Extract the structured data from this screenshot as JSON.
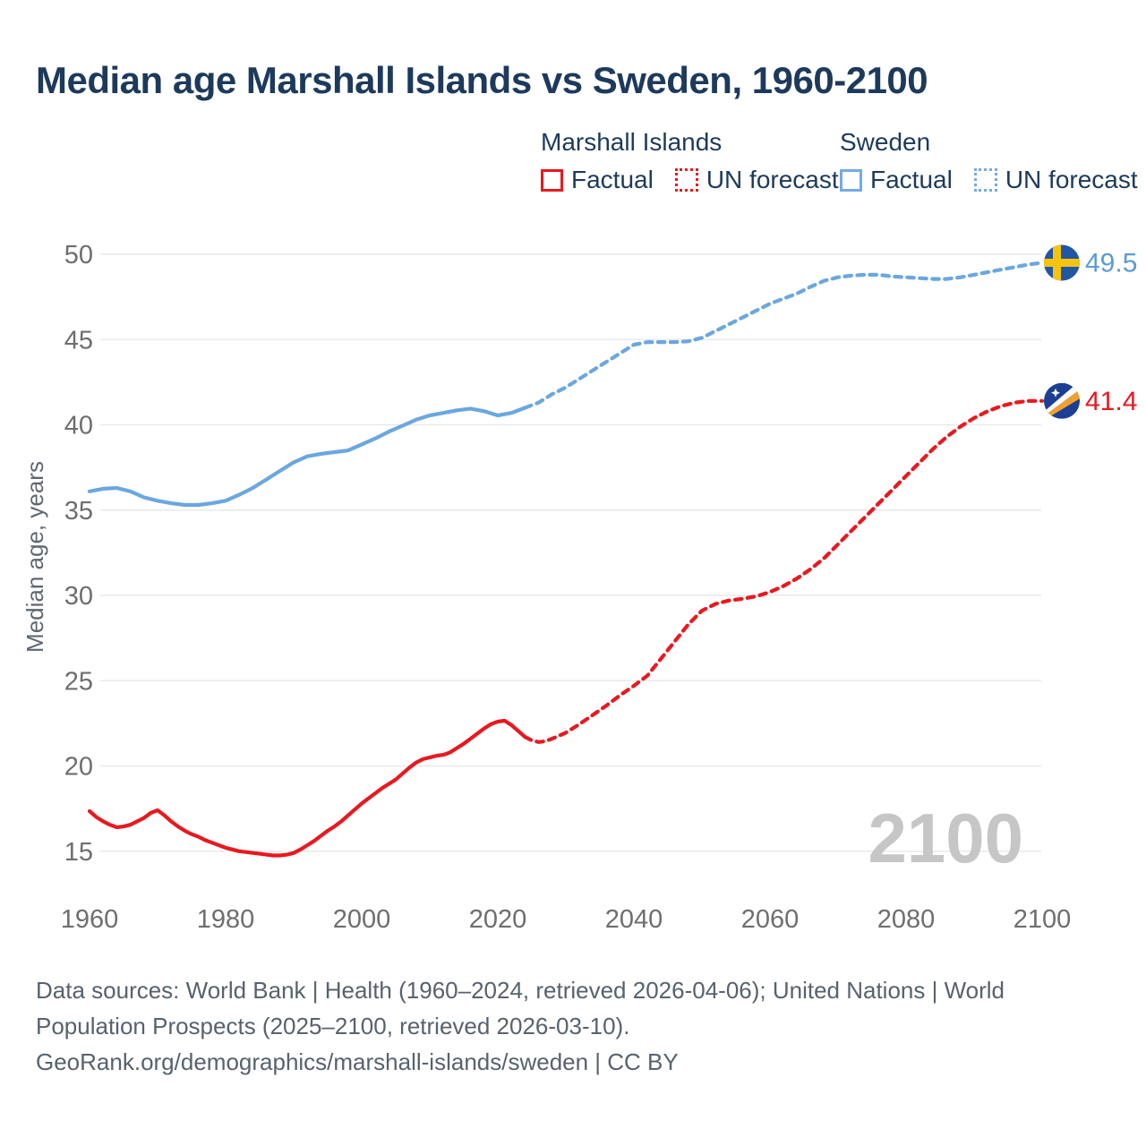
{
  "title": "Median age Marshall Islands vs Sweden, 1960-2100",
  "legend": {
    "groups": [
      {
        "label": "Marshall Islands",
        "color": "#e8191f",
        "items": [
          {
            "label": "Factual",
            "style": "solid"
          },
          {
            "label": "UN forecast",
            "style": "dotted"
          }
        ]
      },
      {
        "label": "Sweden",
        "color": "#74abe2",
        "items": [
          {
            "label": "Factual",
            "style": "solid"
          },
          {
            "label": "UN forecast",
            "style": "dotted"
          }
        ]
      }
    ]
  },
  "end_labels": [
    {
      "series": "Sweden",
      "value": "49.5",
      "color": "#5b9bd5",
      "icon": "sweden-flag-icon"
    },
    {
      "series": "Marshall Islands",
      "value": "41.4",
      "color": "#e8191f",
      "icon": "marshall-islands-flag-icon"
    }
  ],
  "watermark": "2100",
  "footer": {
    "lines": [
      "Data sources: World Bank | Health (1960–2024, retrieved 2026-04-06); United Nations | World",
      "Population Prospects (2025–2100, retrieved 2026-03-10).",
      "GeoRank.org/demographics/marshall-islands/sweden | CC BY"
    ]
  },
  "chart_data": {
    "type": "line",
    "title": "Median age Marshall Islands vs Sweden, 1960-2100",
    "xlabel": "",
    "ylabel": "Median age, years",
    "xlim": [
      1960,
      2100
    ],
    "ylim": [
      15,
      50
    ],
    "x_ticks": [
      1960,
      1980,
      2000,
      2020,
      2040,
      2060,
      2080,
      2100
    ],
    "y_ticks": [
      15,
      20,
      25,
      30,
      35,
      40,
      45,
      50
    ],
    "grid": "horizontal",
    "legend_position": "top-right",
    "series": [
      {
        "name": "Sweden factual",
        "color": "#6ba7e0",
        "dash": false,
        "points": [
          [
            1960,
            36.1
          ],
          [
            1962,
            36.25
          ],
          [
            1964,
            36.3
          ],
          [
            1966,
            36.1
          ],
          [
            1968,
            35.75
          ],
          [
            1970,
            35.55
          ],
          [
            1972,
            35.4
          ],
          [
            1974,
            35.3
          ],
          [
            1976,
            35.3
          ],
          [
            1978,
            35.4
          ],
          [
            1980,
            35.55
          ],
          [
            1982,
            35.9
          ],
          [
            1984,
            36.3
          ],
          [
            1986,
            36.8
          ],
          [
            1988,
            37.3
          ],
          [
            1990,
            37.8
          ],
          [
            1992,
            38.15
          ],
          [
            1994,
            38.3
          ],
          [
            1996,
            38.4
          ],
          [
            1998,
            38.5
          ],
          [
            2000,
            38.85
          ],
          [
            2002,
            39.2
          ],
          [
            2004,
            39.6
          ],
          [
            2006,
            39.95
          ],
          [
            2008,
            40.3
          ],
          [
            2010,
            40.55
          ],
          [
            2012,
            40.7
          ],
          [
            2014,
            40.85
          ],
          [
            2016,
            40.95
          ],
          [
            2018,
            40.8
          ],
          [
            2020,
            40.55
          ],
          [
            2022,
            40.7
          ],
          [
            2024,
            41.0
          ]
        ]
      },
      {
        "name": "Sweden UN forecast",
        "color": "#6ba7e0",
        "dash": true,
        "points": [
          [
            2024,
            41.0
          ],
          [
            2026,
            41.3
          ],
          [
            2028,
            41.8
          ],
          [
            2030,
            42.2
          ],
          [
            2032,
            42.7
          ],
          [
            2034,
            43.2
          ],
          [
            2036,
            43.7
          ],
          [
            2038,
            44.2
          ],
          [
            2040,
            44.7
          ],
          [
            2042,
            44.85
          ],
          [
            2044,
            44.85
          ],
          [
            2046,
            44.85
          ],
          [
            2048,
            44.9
          ],
          [
            2050,
            45.1
          ],
          [
            2052,
            45.5
          ],
          [
            2054,
            45.9
          ],
          [
            2056,
            46.3
          ],
          [
            2058,
            46.7
          ],
          [
            2060,
            47.1
          ],
          [
            2062,
            47.4
          ],
          [
            2064,
            47.7
          ],
          [
            2066,
            48.1
          ],
          [
            2068,
            48.45
          ],
          [
            2070,
            48.65
          ],
          [
            2072,
            48.75
          ],
          [
            2074,
            48.8
          ],
          [
            2076,
            48.8
          ],
          [
            2078,
            48.7
          ],
          [
            2080,
            48.65
          ],
          [
            2082,
            48.6
          ],
          [
            2084,
            48.55
          ],
          [
            2086,
            48.55
          ],
          [
            2088,
            48.65
          ],
          [
            2090,
            48.8
          ],
          [
            2092,
            48.95
          ],
          [
            2094,
            49.1
          ],
          [
            2096,
            49.25
          ],
          [
            2098,
            49.4
          ],
          [
            2100,
            49.5
          ]
        ]
      },
      {
        "name": "Marshall Islands factual",
        "color": "#e8191f",
        "dash": false,
        "points": [
          [
            1960,
            17.35
          ],
          [
            1961,
            17.0
          ],
          [
            1962,
            16.75
          ],
          [
            1963,
            16.55
          ],
          [
            1964,
            16.4
          ],
          [
            1965,
            16.45
          ],
          [
            1966,
            16.55
          ],
          [
            1967,
            16.75
          ],
          [
            1968,
            16.95
          ],
          [
            1969,
            17.25
          ],
          [
            1970,
            17.4
          ],
          [
            1971,
            17.1
          ],
          [
            1972,
            16.75
          ],
          [
            1973,
            16.45
          ],
          [
            1974,
            16.2
          ],
          [
            1975,
            16.0
          ],
          [
            1976,
            15.85
          ],
          [
            1977,
            15.65
          ],
          [
            1978,
            15.5
          ],
          [
            1979,
            15.35
          ],
          [
            1980,
            15.2
          ],
          [
            1981,
            15.1
          ],
          [
            1982,
            15.0
          ],
          [
            1983,
            14.95
          ],
          [
            1984,
            14.9
          ],
          [
            1985,
            14.85
          ],
          [
            1986,
            14.8
          ],
          [
            1987,
            14.75
          ],
          [
            1988,
            14.75
          ],
          [
            1989,
            14.8
          ],
          [
            1990,
            14.9
          ],
          [
            1991,
            15.1
          ],
          [
            1992,
            15.35
          ],
          [
            1993,
            15.6
          ],
          [
            1994,
            15.9
          ],
          [
            1995,
            16.2
          ],
          [
            1996,
            16.45
          ],
          [
            1997,
            16.75
          ],
          [
            1998,
            17.1
          ],
          [
            1999,
            17.45
          ],
          [
            2000,
            17.8
          ],
          [
            2001,
            18.1
          ],
          [
            2002,
            18.4
          ],
          [
            2003,
            18.7
          ],
          [
            2004,
            18.95
          ],
          [
            2005,
            19.2
          ],
          [
            2006,
            19.55
          ],
          [
            2007,
            19.9
          ],
          [
            2008,
            20.2
          ],
          [
            2009,
            20.4
          ],
          [
            2010,
            20.5
          ],
          [
            2011,
            20.6
          ],
          [
            2012,
            20.65
          ],
          [
            2013,
            20.8
          ],
          [
            2014,
            21.05
          ],
          [
            2015,
            21.3
          ],
          [
            2016,
            21.6
          ],
          [
            2017,
            21.9
          ],
          [
            2018,
            22.2
          ],
          [
            2019,
            22.45
          ],
          [
            2020,
            22.6
          ],
          [
            2021,
            22.65
          ],
          [
            2022,
            22.4
          ],
          [
            2023,
            22.05
          ],
          [
            2024,
            21.7
          ]
        ]
      },
      {
        "name": "Marshall Islands UN forecast",
        "color": "#e8191f",
        "dash": true,
        "points": [
          [
            2024,
            21.7
          ],
          [
            2025,
            21.5
          ],
          [
            2026,
            21.4
          ],
          [
            2027,
            21.45
          ],
          [
            2028,
            21.6
          ],
          [
            2030,
            21.95
          ],
          [
            2032,
            22.45
          ],
          [
            2034,
            23.0
          ],
          [
            2036,
            23.55
          ],
          [
            2038,
            24.15
          ],
          [
            2040,
            24.7
          ],
          [
            2042,
            25.3
          ],
          [
            2044,
            26.3
          ],
          [
            2046,
            27.3
          ],
          [
            2048,
            28.3
          ],
          [
            2050,
            29.1
          ],
          [
            2052,
            29.5
          ],
          [
            2054,
            29.7
          ],
          [
            2056,
            29.8
          ],
          [
            2058,
            29.95
          ],
          [
            2060,
            30.2
          ],
          [
            2062,
            30.55
          ],
          [
            2064,
            31.0
          ],
          [
            2066,
            31.55
          ],
          [
            2068,
            32.2
          ],
          [
            2070,
            33.0
          ],
          [
            2072,
            33.8
          ],
          [
            2074,
            34.6
          ],
          [
            2076,
            35.4
          ],
          [
            2078,
            36.2
          ],
          [
            2080,
            37.0
          ],
          [
            2082,
            37.8
          ],
          [
            2084,
            38.6
          ],
          [
            2086,
            39.3
          ],
          [
            2088,
            39.9
          ],
          [
            2090,
            40.4
          ],
          [
            2092,
            40.8
          ],
          [
            2094,
            41.1
          ],
          [
            2096,
            41.3
          ],
          [
            2098,
            41.4
          ],
          [
            2100,
            41.4
          ]
        ]
      }
    ]
  }
}
